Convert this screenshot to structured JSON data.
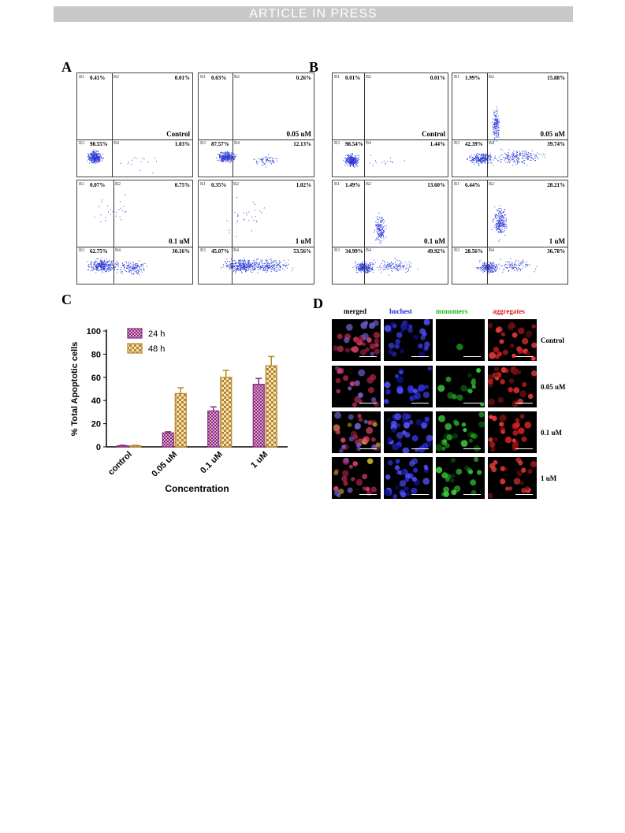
{
  "header": {
    "banner": "ARTICLE IN PRESS"
  },
  "panels": {
    "a": "A",
    "b": "B",
    "c": "C",
    "d": "D"
  },
  "quadrant_labels": [
    "B1",
    "B2",
    "B3",
    "B4"
  ],
  "flow_a": [
    {
      "cond": "Control",
      "q1": "0.41%",
      "q2": "0.01%",
      "q3": "98.55%",
      "q4": "1.03%"
    },
    {
      "cond": "0.05 uM",
      "q1": "0.03%",
      "q2": "0.26%",
      "q3": "87.57%",
      "q4": "12.13%"
    },
    {
      "cond": "0.1 uM",
      "q1": "0.07%",
      "q2": "0.75%",
      "q3": "62.75%",
      "q4": "30.16%"
    },
    {
      "cond": "1 uM",
      "q1": "0.35%",
      "q2": "1.02%",
      "q3": "45.07%",
      "q4": "53.56%"
    }
  ],
  "flow_b": [
    {
      "cond": "Control",
      "q1": "0.01%",
      "q2": "0.01%",
      "q3": "98.54%",
      "q4": "1.44%"
    },
    {
      "cond": "0.05 uM",
      "q1": "1.99%",
      "q2": "15.88%",
      "q3": "42.39%",
      "q4": "39.74%"
    },
    {
      "cond": "0.1 uM",
      "q1": "1.49%",
      "q2": "13.60%",
      "q3": "34.99%",
      "q4": "49.92%"
    },
    {
      "cond": "1 uM",
      "q1": "6.44%",
      "q2": "28.21%",
      "q3": "28.56%",
      "q4": "36.78%"
    }
  ],
  "chart_data": {
    "type": "bar",
    "categories": [
      "control",
      "0.05 uM",
      "0.1 uM",
      "1 uM"
    ],
    "series": [
      {
        "name": "24 h",
        "values": [
          1,
          12,
          31,
          54
        ],
        "errors": [
          0.3,
          1,
          3.5,
          5
        ],
        "color": "#8a2a7a"
      },
      {
        "name": "48 h",
        "values": [
          1,
          46,
          60,
          70
        ],
        "errors": [
          0.3,
          5,
          6,
          8
        ],
        "color": "#b8862a"
      }
    ],
    "xlabel": "Concentration",
    "ylabel": "% Total Apoptotic cells",
    "ylim": [
      0,
      100
    ],
    "yticks": [
      0,
      20,
      40,
      60,
      80,
      100
    ],
    "legend": "top-left"
  },
  "microscopy": {
    "columns": [
      {
        "label": "merged",
        "color": "#000000"
      },
      {
        "label": "hochest",
        "color": "#2a2ad8"
      },
      {
        "label": "monomers",
        "color": "#1fb81f"
      },
      {
        "label": "aggregates",
        "color": "#e02020"
      }
    ],
    "rows": [
      "Control",
      "0.05 uM",
      "0.1 uM",
      "1 uM"
    ]
  }
}
